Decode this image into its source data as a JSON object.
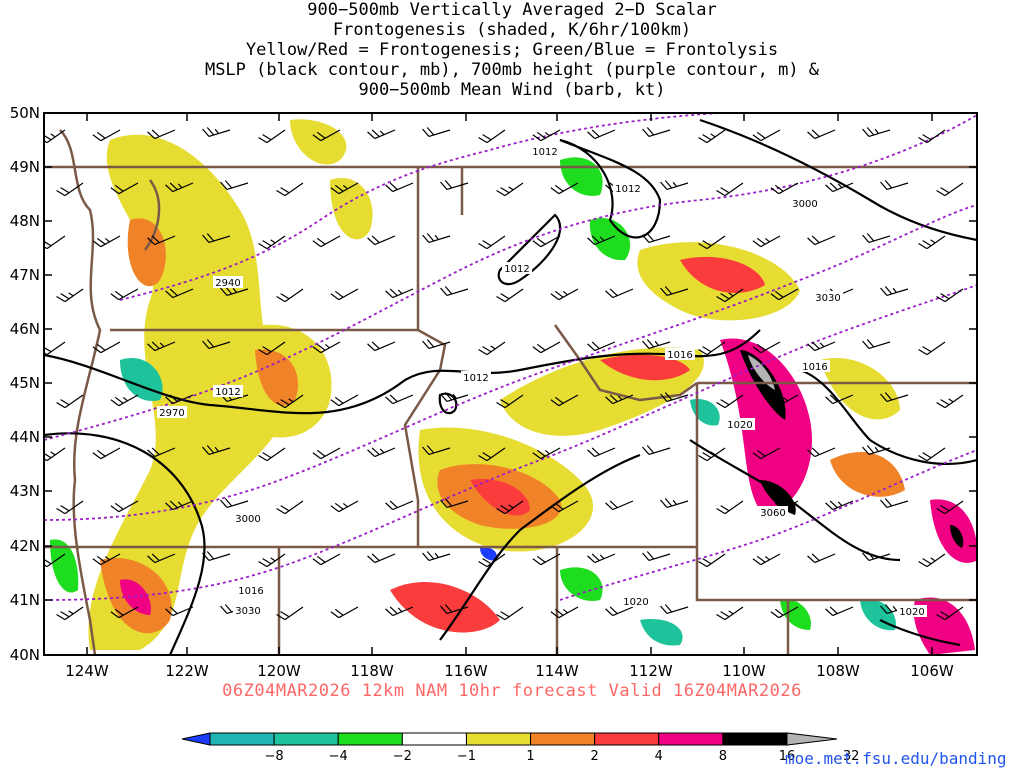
{
  "title_lines": [
    "900−500mb Vertically Averaged 2−D Scalar",
    "Frontogenesis (shaded, K/6hr/100km)",
    "Yellow/Red = Frontogenesis;  Green/Blue = Frontolysis",
    "MSLP (black contour, mb), 700mb height (purple contour, m) &",
    "900−500mb Mean Wind (barb, kt)"
  ],
  "valid_line": "06Z04MAR2026 12km NAM 10hr forecast Valid 16Z04MAR2026",
  "credit": "moe.met.fsu.edu/banding",
  "lat_labels": [
    "50N",
    "49N",
    "48N",
    "47N",
    "46N",
    "45N",
    "44N",
    "43N",
    "42N",
    "41N",
    "40N"
  ],
  "lon_labels": [
    "124W",
    "122W",
    "120W",
    "118W",
    "116W",
    "114W",
    "112W",
    "110W",
    "108W",
    "106W"
  ],
  "mslp_labels": [
    "1012",
    "1012",
    "1012",
    "1012",
    "1012",
    "1016",
    "1016",
    "1016",
    "1020",
    "1020",
    "1020"
  ],
  "height_labels": [
    "2940",
    "2970",
    "3000",
    "3000",
    "3030",
    "3030",
    "3060"
  ],
  "colorbar": {
    "ticks": [
      "−8",
      "−4",
      "−2",
      "−1",
      "1",
      "2",
      "4",
      "8",
      "16",
      "32"
    ],
    "colors": [
      "#1e3cff",
      "#20b4b4",
      "#1ec39b",
      "#1edc1e",
      "#ffffff",
      "#e6dc32",
      "#f08228",
      "#fa3c3c",
      "#f00082",
      "#000000",
      "#b4b4b4"
    ]
  },
  "colors": {
    "mslp": "#000000",
    "height": "#9b1ec8",
    "borders": "#7a5a46",
    "valid": "#ff6666",
    "credit": "#2255ee"
  }
}
